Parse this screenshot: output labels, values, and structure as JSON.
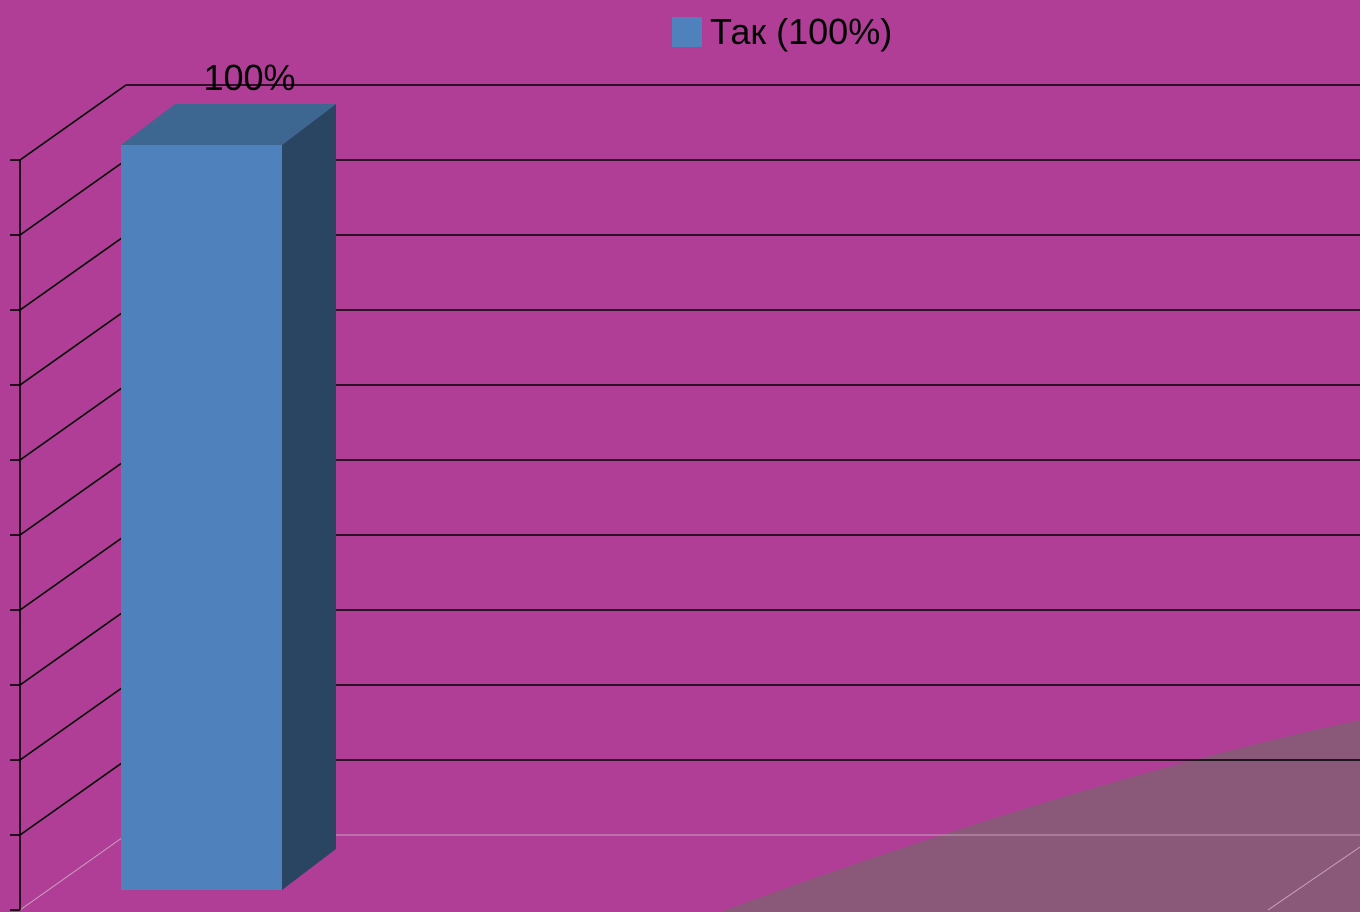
{
  "colors": {
    "background": "#b03e97",
    "decorative_swoosh": "#8a5878",
    "gridline": "#000000",
    "text": "#000000"
  },
  "chart_data": {
    "type": "bar",
    "style": "3d-column",
    "title": "",
    "xlabel": "",
    "ylabel": "",
    "categories": [
      ""
    ],
    "series": [
      {
        "name": "Так (100%)",
        "values": [
          100
        ],
        "data_labels": [
          "100%"
        ],
        "color": "#4f81bd",
        "top_color": "#3d6790",
        "side_color": "#294562"
      }
    ],
    "ylim": [
      0,
      100
    ],
    "y_major_step": 10,
    "y_tick_labels_shown": false,
    "grid": true,
    "legend_position": "top-center"
  }
}
